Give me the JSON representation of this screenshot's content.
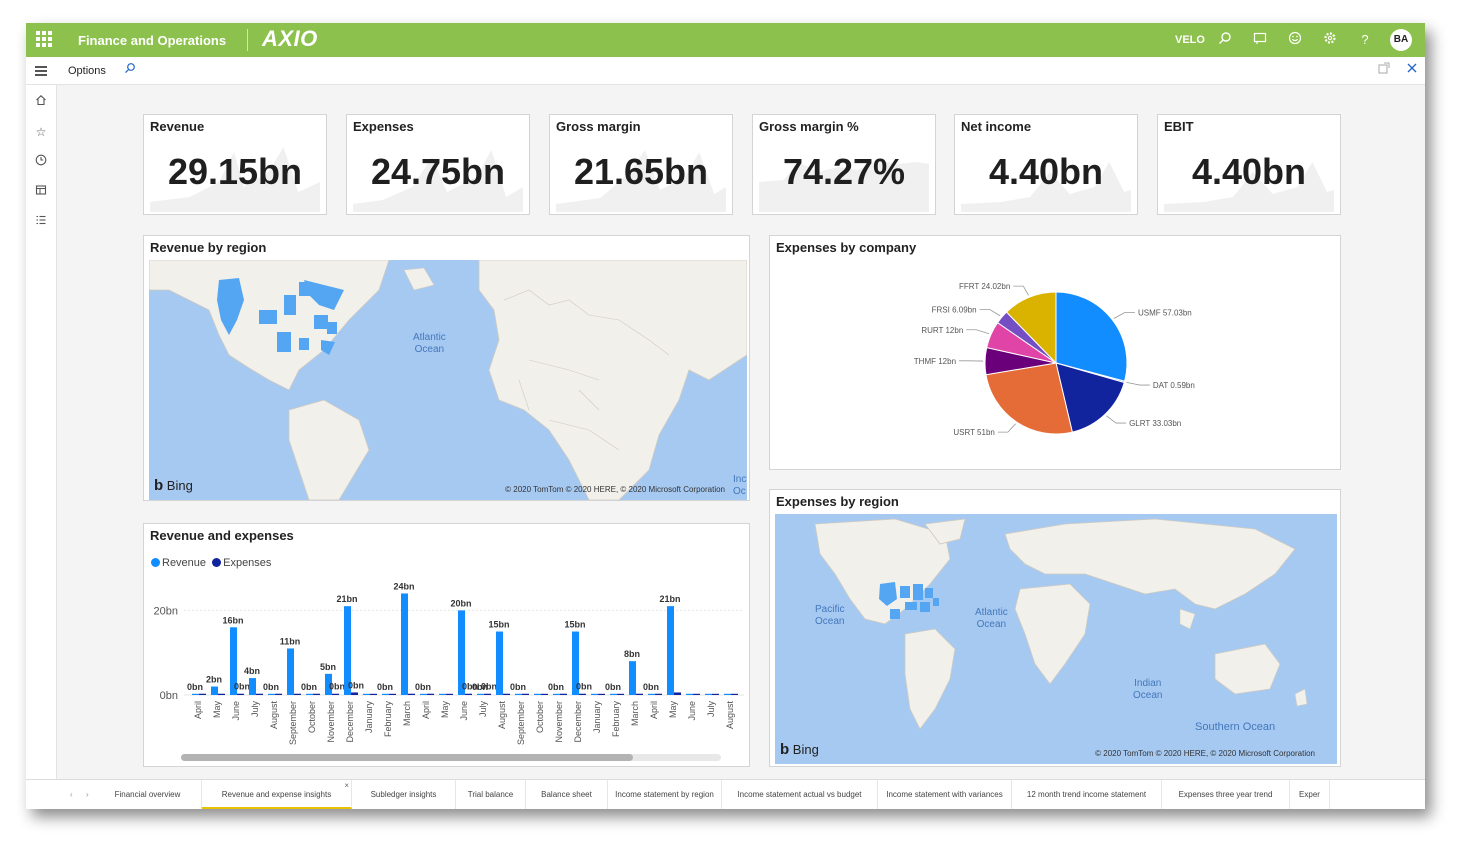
{
  "header": {
    "app_name": "Finance and Operations",
    "brand": "AXIO",
    "company": "VELO",
    "avatar_initials": "BA",
    "accent_color": "#8cc14d"
  },
  "actionbar": {
    "options_label": "Options"
  },
  "kpis": [
    {
      "title": "Revenue",
      "value": "29.15bn"
    },
    {
      "title": "Expenses",
      "value": "24.75bn"
    },
    {
      "title": "Gross margin",
      "value": "21.65bn"
    },
    {
      "title": "Gross margin %",
      "value": "74.27%"
    },
    {
      "title": "Net income",
      "value": "4.40bn"
    },
    {
      "title": "EBIT",
      "value": "4.40bn"
    }
  ],
  "revenue_map": {
    "title": "Revenue by region",
    "ocean_label_1": "Atlantic",
    "ocean_label_2": "Ocean",
    "edge_label_1": "Inc",
    "edge_label_2": "Oc",
    "bing": "Bing",
    "copyright": "© 2020 TomTom © 2020 HERE, © 2020 Microsoft Corporation"
  },
  "expenses_pie": {
    "title": "Expenses by company",
    "slices": [
      {
        "label": "USMF 57.03bn",
        "value": 57.03,
        "color": "#118dff"
      },
      {
        "label": "DAT 0.59bn",
        "value": 0.59,
        "color": "#1a4fb5"
      },
      {
        "label": "GLRT 33.03bn",
        "value": 33.03,
        "color": "#12239e"
      },
      {
        "label": "USRT 51bn",
        "value": 51,
        "color": "#e66c37"
      },
      {
        "label": "THMF 12bn",
        "value": 12,
        "color": "#6b007b"
      },
      {
        "label": "RURT 12bn",
        "value": 12,
        "color": "#e044a7"
      },
      {
        "label": "FRSI 6.09bn",
        "value": 6.09,
        "color": "#744ec2"
      },
      {
        "label": "FFRT 24.02bn",
        "value": 24.02,
        "color": "#d9b300"
      }
    ]
  },
  "expenses_map": {
    "title": "Expenses by region",
    "pacific_1": "Pacific",
    "pacific_2": "Ocean",
    "atlantic_1": "Atlantic",
    "atlantic_2": "Ocean",
    "indian_1": "Indian",
    "indian_2": "Ocean",
    "southern": "Southern Ocean",
    "bing": "Bing",
    "copyright": "© 2020 TomTom © 2020 HERE, © 2020 Microsoft Corporation"
  },
  "revenue_expenses_chart": {
    "title": "Revenue and expenses",
    "legend_revenue": "Revenue",
    "legend_expenses": "Expenses"
  },
  "chart_data": {
    "type": "bar",
    "title": "Revenue and expenses",
    "ylim": [
      0,
      26
    ],
    "y_ticks": [
      {
        "value": 0,
        "label": "0bn"
      },
      {
        "value": 20,
        "label": "20bn"
      }
    ],
    "categories": [
      "April",
      "May",
      "June",
      "July",
      "August",
      "September",
      "October",
      "November",
      "December",
      "January",
      "February",
      "March",
      "April",
      "May",
      "June",
      "July",
      "August",
      "September",
      "October",
      "November",
      "December",
      "January",
      "February",
      "March",
      "April",
      "May",
      "June",
      "July",
      "August"
    ],
    "series": [
      {
        "name": "Revenue",
        "color": "#118dff",
        "values": [
          0,
          2,
          16,
          4,
          0,
          11,
          0,
          5,
          21,
          0,
          0,
          24,
          0,
          0,
          20,
          0,
          15,
          0,
          0,
          0,
          15,
          0,
          0,
          8,
          0,
          21,
          0,
          0,
          0
        ],
        "labels": [
          "0bn",
          "2bn",
          "16bn",
          "4bn",
          "0bn",
          "11bn",
          "0bn",
          "5bn",
          "21bn",
          "",
          "0bn",
          "24bn",
          "0bn",
          "",
          "20bn",
          "0bn",
          "15bn",
          "0bn",
          "",
          "0bn",
          "15bn",
          "",
          "0bn",
          "8bn",
          "0bn",
          "21bn",
          "",
          "",
          ""
        ]
      },
      {
        "name": "Expenses",
        "color": "#12239e",
        "values": [
          0.3,
          0.3,
          0.3,
          0.3,
          0.3,
          0.3,
          0.3,
          0.3,
          0.6,
          0,
          0,
          0.3,
          0.3,
          0,
          0.3,
          0.3,
          0.3,
          0.3,
          0,
          0.3,
          0.3,
          0,
          0,
          0.3,
          0.3,
          0.6,
          0,
          0,
          0
        ],
        "labels": [
          "",
          "",
          "0bn",
          "",
          "",
          "",
          "",
          "0bn",
          "0bn",
          "",
          "",
          "",
          "",
          "",
          "0bn",
          "0bn",
          "",
          "",
          "",
          "",
          "0bn",
          "",
          "",
          "",
          "",
          "",
          "",
          "",
          ""
        ]
      }
    ]
  },
  "tabs": [
    {
      "label": "Financial overview"
    },
    {
      "label": "Revenue and expense insights",
      "active": true
    },
    {
      "label": "Subledger insights"
    },
    {
      "label": "Trial balance"
    },
    {
      "label": "Balance sheet"
    },
    {
      "label": "Income statement by region"
    },
    {
      "label": "Income statement actual vs budget"
    },
    {
      "label": "Income statement with variances"
    },
    {
      "label": "12 month trend income statement"
    },
    {
      "label": "Expenses three year trend"
    },
    {
      "label": "Exper"
    }
  ]
}
